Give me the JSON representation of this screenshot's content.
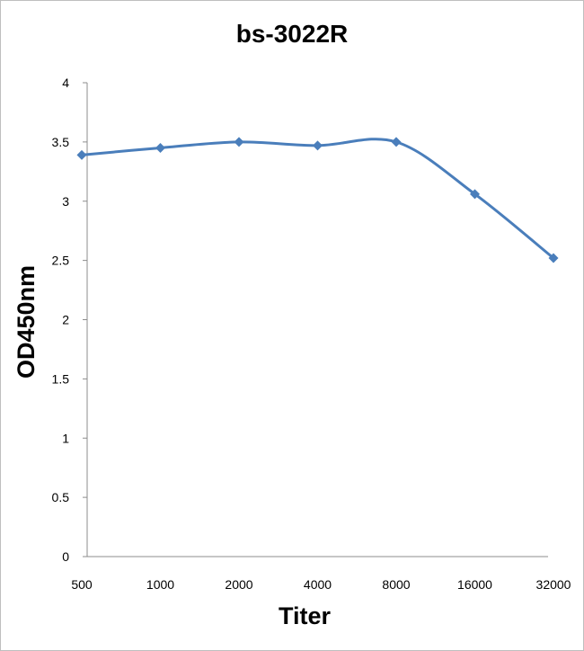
{
  "chart_data": {
    "type": "line",
    "title": "bs-3022R",
    "xlabel": "Titer",
    "ylabel": "OD450nm",
    "categories": [
      "500",
      "1000",
      "2000",
      "4000",
      "8000",
      "16000",
      "32000"
    ],
    "series": [
      {
        "values": [
          3.39,
          3.45,
          3.5,
          3.47,
          3.5,
          3.06,
          2.52
        ],
        "color": "#4a7ebb"
      }
    ],
    "ylim": [
      0,
      4
    ],
    "yticks": [
      "0",
      "0.5",
      "1",
      "1.5",
      "2",
      "2.5",
      "3",
      "3.5",
      "4"
    ],
    "grid": false,
    "legend": "none",
    "marker": "diamond",
    "smooth": true
  }
}
